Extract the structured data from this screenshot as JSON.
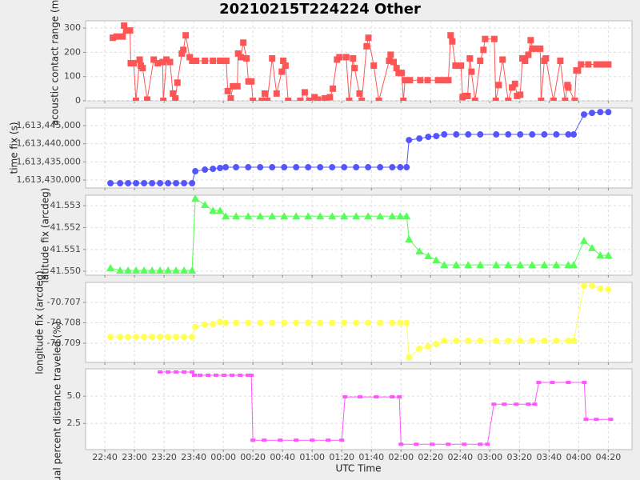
{
  "title": "20210215T224224 Other",
  "xaxis": {
    "label": "UTC Time",
    "xlim": [
      27,
      396
    ],
    "xticks": [
      {
        "value": 40,
        "label": "22:40"
      },
      {
        "value": 60,
        "label": "23:00"
      },
      {
        "value": 80,
        "label": "23:20"
      },
      {
        "value": 100,
        "label": "23:40"
      },
      {
        "value": 120,
        "label": "00:00"
      },
      {
        "value": 140,
        "label": "00:20"
      },
      {
        "value": 160,
        "label": "00:40"
      },
      {
        "value": 180,
        "label": "01:00"
      },
      {
        "value": 200,
        "label": "01:20"
      },
      {
        "value": 220,
        "label": "01:40"
      },
      {
        "value": 240,
        "label": "02:00"
      },
      {
        "value": 260,
        "label": "02:20"
      },
      {
        "value": 280,
        "label": "02:40"
      },
      {
        "value": 300,
        "label": "03:00"
      },
      {
        "value": 320,
        "label": "03:20"
      },
      {
        "value": 340,
        "label": "03:40"
      },
      {
        "value": 360,
        "label": "04:00"
      },
      {
        "value": 380,
        "label": "04:20"
      }
    ]
  },
  "chart_data": [
    {
      "type": "line",
      "ylabel": "acoustic contact range (m)",
      "color": "#ff5555",
      "marker": "square",
      "grid": true,
      "ylim": [
        0,
        330
      ],
      "yticks": [
        0,
        100,
        200,
        300
      ],
      "x": [
        45.4,
        48,
        52,
        53,
        54.5,
        57,
        57.5,
        59.5,
        61,
        63.5,
        64.3,
        65.5,
        68.6,
        73,
        75.7,
        79,
        79.5,
        81.6,
        84,
        86,
        87.6,
        89,
        92,
        93,
        94.6,
        97.3,
        99,
        101.6,
        107.6,
        113,
        117.8,
        122,
        123,
        125,
        126.5,
        129.5,
        130,
        131.8,
        133.5,
        135.7,
        137,
        139,
        140,
        146,
        148,
        149.7,
        153,
        156,
        159.5,
        160.5,
        162,
        163.8,
        172,
        175,
        178,
        181.6,
        184,
        188.6,
        192,
        194,
        196.8,
        198.4,
        203,
        205,
        207.6,
        208.6,
        212,
        213.5,
        216.8,
        218,
        221.6,
        225,
        232,
        233,
        235,
        237,
        238.4,
        240.5,
        241.6,
        242.7,
        246,
        253,
        258,
        265,
        269,
        272,
        273.5,
        274.6,
        276.8,
        280.5,
        281.6,
        283,
        285,
        286.5,
        287.6,
        290,
        293.5,
        295.7,
        296.8,
        303,
        304,
        306,
        308.6,
        312.4,
        315,
        317,
        318.4,
        320.5,
        322,
        323.8,
        326,
        327.6,
        329,
        331,
        334,
        334.6,
        336.8,
        337.8,
        343,
        347.6,
        350.8,
        352.4,
        353,
        357.3,
        358.4,
        359.5,
        361.6,
        366.5,
        372,
        376,
        380
      ],
      "values": [
        260,
        265,
        265,
        310,
        290,
        290,
        155,
        155,
        0,
        170,
        145,
        135,
        5,
        170,
        155,
        160,
        0,
        170,
        160,
        30,
        10,
        75,
        195,
        210,
        270,
        180,
        165,
        165,
        165,
        165,
        165,
        165,
        40,
        10,
        60,
        60,
        195,
        180,
        240,
        175,
        80,
        80,
        0,
        0,
        30,
        0,
        175,
        30,
        120,
        165,
        145,
        0,
        0,
        35,
        0,
        15,
        5,
        10,
        15,
        50,
        170,
        180,
        180,
        0,
        175,
        135,
        30,
        0,
        225,
        260,
        145,
        0,
        165,
        190,
        160,
        135,
        115,
        115,
        0,
        85,
        85,
        85,
        85,
        85,
        85,
        85,
        270,
        245,
        145,
        145,
        15,
        20,
        20,
        175,
        120,
        0,
        165,
        210,
        255,
        255,
        0,
        65,
        170,
        0,
        55,
        70,
        20,
        25,
        175,
        165,
        190,
        250,
        215,
        215,
        215,
        0,
        165,
        175,
        0,
        165,
        0,
        65,
        55,
        0,
        125,
        125,
        150,
        150,
        150,
        150,
        150
      ]
    },
    {
      "type": "line",
      "ylabel": "time fix (s)",
      "color": "#5555ff",
      "marker": "circle",
      "grid": true,
      "ylim": [
        1613427800,
        1613449850
      ],
      "yticks": [
        {
          "value": 1613430000,
          "label": "1,613,430,000"
        },
        {
          "value": 1613435000,
          "label": "1,613,435,000"
        },
        {
          "value": 1613440000,
          "label": "1,613,440,000"
        },
        {
          "value": 1613445000,
          "label": "1,613,445,000"
        }
      ],
      "x": [
        43.8,
        50.3,
        55.7,
        61.1,
        66.5,
        71.9,
        77.3,
        82.7,
        88.1,
        93.5,
        98.9,
        101.1,
        107.6,
        113,
        117.8,
        121.6,
        128.6,
        136.8,
        144.9,
        153,
        161.1,
        169.2,
        177.3,
        185.4,
        193.5,
        201.6,
        209.7,
        217.8,
        225.9,
        234.1,
        239.5,
        243.8,
        245.4,
        252.4,
        258.4,
        263.8,
        269.2,
        277.3,
        285.4,
        293.5,
        304.3,
        312.4,
        320.5,
        328.6,
        336.8,
        344.9,
        353,
        356.6,
        363.6,
        369,
        374.6,
        380
      ],
      "values": [
        1613429120,
        1613429120,
        1613429120,
        1613429120,
        1613429120,
        1613429120,
        1613429120,
        1613429120,
        1613429120,
        1613429120,
        1613429120,
        1613432420,
        1613432860,
        1613433080,
        1613433300,
        1613433520,
        1613433520,
        1613433520,
        1613433520,
        1613433520,
        1613433520,
        1613433520,
        1613433520,
        1613433520,
        1613433520,
        1613433520,
        1613433520,
        1613433520,
        1613433520,
        1613433520,
        1613433520,
        1613433520,
        1613441010,
        1613441450,
        1613441890,
        1613442110,
        1613442560,
        1613442560,
        1613442560,
        1613442560,
        1613442560,
        1613442560,
        1613442560,
        1613442560,
        1613442560,
        1613442560,
        1613442560,
        1613442560,
        1613448060,
        1613448500,
        1613448720,
        1613448720
      ]
    },
    {
      "type": "line",
      "ylabel": "latitude fix (arcdeg)",
      "color": "#55ff55",
      "marker": "triangle",
      "grid": true,
      "ylim": [
        41.54982,
        41.55348
      ],
      "yticks": [
        {
          "value": 41.55,
          "label": "41.550"
        },
        41.551,
        41.552,
        41.553
      ],
      "x": [
        43.8,
        50.3,
        55.7,
        61.1,
        66.5,
        71.9,
        77.3,
        82.7,
        88.1,
        93.5,
        98.9,
        101.1,
        107.6,
        113,
        117.8,
        121.6,
        128.6,
        136.8,
        144.9,
        153,
        161.1,
        169.2,
        177.3,
        185.4,
        193.5,
        201.6,
        209.7,
        217.8,
        225.9,
        234.1,
        239.5,
        243.8,
        245.4,
        252.4,
        258.4,
        263.8,
        269.2,
        277.3,
        285.4,
        293.5,
        304.3,
        312.4,
        320.5,
        328.6,
        336.8,
        344.9,
        353,
        356.6,
        363.6,
        369,
        374.6,
        380
      ],
      "values": [
        41.55015,
        41.55004,
        41.55004,
        41.55004,
        41.55004,
        41.55004,
        41.55004,
        41.55004,
        41.55004,
        41.55004,
        41.55004,
        41.55333,
        41.55304,
        41.55278,
        41.55278,
        41.55252,
        41.55252,
        41.55252,
        41.55252,
        41.55252,
        41.55252,
        41.55252,
        41.55252,
        41.55252,
        41.55252,
        41.55252,
        41.55252,
        41.55252,
        41.55252,
        41.55252,
        41.55252,
        41.55252,
        41.55147,
        41.55092,
        41.5507,
        41.55051,
        41.55029,
        41.55029,
        41.55029,
        41.55029,
        41.55029,
        41.55029,
        41.55029,
        41.55029,
        41.55029,
        41.55029,
        41.55029,
        41.55029,
        41.5514,
        41.55107,
        41.55073,
        41.55073
      ]
    },
    {
      "type": "line",
      "ylabel": "longitude fix (arcdeg)",
      "color": "#ffff55",
      "marker": "circle",
      "grid": true,
      "ylim": [
        -70.70994,
        -70.70602
      ],
      "yticks": [
        -70.709,
        -70.708,
        -70.707
      ],
      "x": [
        43.8,
        50.3,
        55.7,
        61.1,
        66.5,
        71.9,
        77.3,
        82.7,
        88.1,
        93.5,
        98.9,
        101.1,
        107.6,
        113,
        117.8,
        121.6,
        128.6,
        136.8,
        144.9,
        153,
        161.1,
        169.2,
        177.3,
        185.4,
        193.5,
        201.6,
        209.7,
        217.8,
        225.9,
        234.1,
        239.5,
        243.8,
        245.4,
        252.4,
        258.4,
        263.8,
        269.2,
        277.3,
        285.4,
        293.5,
        304.3,
        312.4,
        320.5,
        328.6,
        336.8,
        344.9,
        353,
        356.6,
        363.6,
        369,
        374.6,
        380
      ],
      "values": [
        -70.70869,
        -70.70869,
        -70.70869,
        -70.70869,
        -70.70869,
        -70.70869,
        -70.70869,
        -70.70869,
        -70.70869,
        -70.70869,
        -70.70869,
        -70.7082,
        -70.7081,
        -70.70806,
        -70.70796,
        -70.708,
        -70.708,
        -70.708,
        -70.708,
        -70.708,
        -70.708,
        -70.708,
        -70.708,
        -70.708,
        -70.708,
        -70.708,
        -70.708,
        -70.708,
        -70.708,
        -70.708,
        -70.708,
        -70.708,
        -70.70969,
        -70.70927,
        -70.70916,
        -70.70904,
        -70.70888,
        -70.70888,
        -70.70888,
        -70.70888,
        -70.70888,
        -70.70888,
        -70.70888,
        -70.70888,
        -70.70888,
        -70.70888,
        -70.70888,
        -70.70888,
        -70.70618,
        -70.70618,
        -70.70633,
        -70.70637
      ]
    },
    {
      "type": "line",
      "ylabel": "actual percent distance traveled (%)",
      "color": "#ff55ff",
      "marker": "dash",
      "grid": true,
      "ylim": [
        0.1,
        7.5
      ],
      "yticks": [
        2.5,
        {
          "value": 5,
          "label": "5.0"
        }
      ],
      "x": [
        77.3,
        82.7,
        88.1,
        93.5,
        98.9,
        100.5,
        104.3,
        109.7,
        115.1,
        120.5,
        125.9,
        131.4,
        136.8,
        138.9,
        140,
        147.6,
        158.4,
        169.2,
        180,
        190.8,
        200,
        202.2,
        212.4,
        223.2,
        234.1,
        238.9,
        240,
        250.3,
        261.1,
        271.9,
        282.7,
        293.5,
        298.4,
        302.7,
        309.7,
        317.8,
        326,
        330.3,
        333,
        342.2,
        353,
        363.8,
        364.9,
        371.9,
        381.6
      ],
      "values": [
        7.21,
        7.21,
        7.21,
        7.21,
        7.21,
        6.91,
        6.91,
        6.91,
        6.91,
        6.91,
        6.91,
        6.91,
        6.91,
        6.91,
        0.96,
        0.96,
        0.96,
        0.96,
        0.96,
        0.96,
        0.96,
        4.93,
        4.93,
        4.93,
        4.93,
        4.93,
        0.59,
        0.59,
        0.59,
        0.59,
        0.59,
        0.59,
        0.59,
        4.26,
        4.26,
        4.26,
        4.26,
        4.26,
        6.25,
        6.25,
        6.25,
        6.25,
        2.87,
        2.87,
        2.87
      ]
    }
  ]
}
